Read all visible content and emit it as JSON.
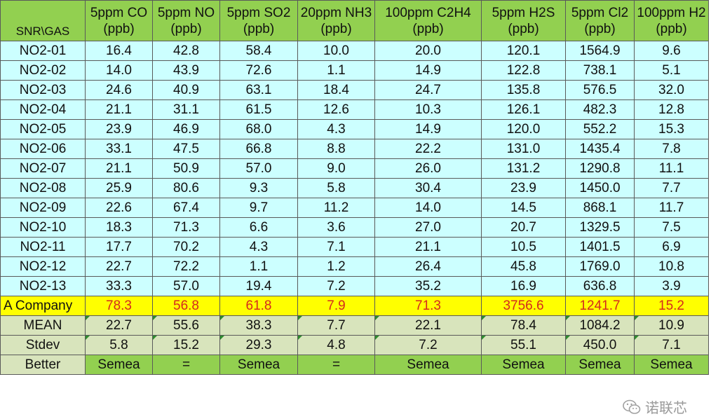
{
  "table": {
    "corner_label": "SNR\\GAS",
    "columns": [
      {
        "gas": "5ppm CO",
        "unit": "(ppb)"
      },
      {
        "gas": "5ppm NO",
        "unit": "(ppb)"
      },
      {
        "gas": "5ppm SO2",
        "unit": "(ppb)"
      },
      {
        "gas": "20ppm NH3",
        "unit": "(ppb)"
      },
      {
        "gas": "100ppm C2H4",
        "unit": "(ppb)"
      },
      {
        "gas": "5ppm H2S",
        "unit": "(ppb)"
      },
      {
        "gas": "5ppm Cl2",
        "unit": "(ppb)"
      },
      {
        "gas": "100ppm H2",
        "unit": "(ppb)"
      }
    ],
    "rows": [
      {
        "label": "NO2-01",
        "values": [
          "16.4",
          "42.8",
          "58.4",
          "10.0",
          "20.0",
          "120.1",
          "1564.9",
          "9.6"
        ]
      },
      {
        "label": "NO2-02",
        "values": [
          "14.0",
          "43.9",
          "72.6",
          "1.1",
          "14.9",
          "122.8",
          "738.1",
          "5.1"
        ]
      },
      {
        "label": "NO2-03",
        "values": [
          "24.6",
          "40.9",
          "63.1",
          "18.4",
          "24.7",
          "135.8",
          "576.5",
          "32.0"
        ]
      },
      {
        "label": "NO2-04",
        "values": [
          "21.1",
          "31.1",
          "61.5",
          "12.6",
          "10.3",
          "126.1",
          "482.3",
          "12.8"
        ]
      },
      {
        "label": "NO2-05",
        "values": [
          "23.9",
          "46.9",
          "68.0",
          "4.3",
          "14.9",
          "120.0",
          "552.2",
          "15.3"
        ]
      },
      {
        "label": "NO2-06",
        "values": [
          "33.1",
          "47.5",
          "66.8",
          "8.8",
          "22.2",
          "131.0",
          "1435.4",
          "7.8"
        ]
      },
      {
        "label": "NO2-07",
        "values": [
          "21.1",
          "50.9",
          "57.0",
          "9.0",
          "26.0",
          "131.2",
          "1290.8",
          "11.1"
        ]
      },
      {
        "label": "NO2-08",
        "values": [
          "25.9",
          "80.6",
          "9.3",
          "5.8",
          "30.4",
          "23.9",
          "1450.0",
          "7.7"
        ]
      },
      {
        "label": "NO2-09",
        "values": [
          "22.6",
          "67.4",
          "9.7",
          "11.2",
          "14.0",
          "14.5",
          "868.1",
          "11.7"
        ]
      },
      {
        "label": "NO2-10",
        "values": [
          "18.3",
          "71.3",
          "6.6",
          "3.6",
          "27.0",
          "20.7",
          "1329.5",
          "7.5"
        ]
      },
      {
        "label": "NO2-11",
        "values": [
          "17.7",
          "70.2",
          "4.3",
          "7.1",
          "21.1",
          "10.5",
          "1401.5",
          "6.9"
        ]
      },
      {
        "label": "NO2-12",
        "values": [
          "22.7",
          "72.2",
          "1.1",
          "1.2",
          "26.4",
          "45.8",
          "1769.0",
          "10.8"
        ]
      },
      {
        "label": "NO2-13",
        "values": [
          "33.3",
          "57.0",
          "19.4",
          "7.2",
          "35.2",
          "16.9",
          "636.8",
          "3.9"
        ]
      }
    ],
    "company": {
      "label": "A Company",
      "values": [
        "78.3",
        "56.8",
        "61.8",
        "7.9",
        "71.3",
        "3756.6",
        "1241.7",
        "15.2"
      ]
    },
    "mean": {
      "label": "MEAN",
      "values": [
        "22.7",
        "55.6",
        "38.3",
        "7.7",
        "22.1",
        "78.4",
        "1084.2",
        "10.9"
      ]
    },
    "stdev": {
      "label": "Stdev",
      "values": [
        "5.8",
        "15.2",
        "29.3",
        "4.8",
        "7.2",
        "55.1",
        "450.0",
        "7.1"
      ]
    },
    "better": {
      "label": "Better",
      "values": [
        "Semea",
        "=",
        "Semea",
        "=",
        "Semea",
        "Semea",
        "Semea",
        "Semea"
      ]
    }
  },
  "watermark": {
    "text": "诺联芯",
    "icon": "wechat-icon",
    "color": "#9a9a9a"
  },
  "colors": {
    "header": "#92d050",
    "body": "#ccffff",
    "company_row": "#ffff00",
    "company_text": "#d42a1e",
    "stat_rows": "#d8e4bc"
  }
}
